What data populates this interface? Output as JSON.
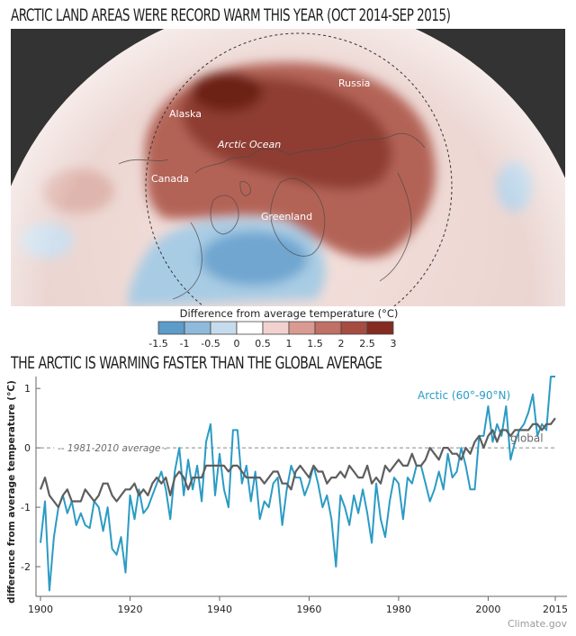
{
  "map": {
    "title": "Arctic land areas were record warm this year (Oct 2014-Sep 2015)",
    "labels": {
      "alaska": "Alaska",
      "russia": "Russia",
      "arctic_ocean": "Arctic Ocean",
      "canada": "Canada",
      "greenland": "Greenland"
    },
    "legend": {
      "title": "Difference from average temperature (°C)",
      "ticks": [
        "-1.5",
        "-1",
        "-0.5",
        "0",
        "0.5",
        "1",
        "1.5",
        "2",
        "2.5",
        "3"
      ],
      "colors": [
        "#5d9cc9",
        "#8fbadc",
        "#c6dcec",
        "#ffffff",
        "#f1d2ce",
        "#d99a92",
        "#c07064",
        "#a64c41",
        "#852c22"
      ]
    }
  },
  "chart_data": {
    "type": "line",
    "title": "The Arctic is warming faster than the global average",
    "xlabel": "",
    "ylabel": "difference from average temperature (°C)",
    "xlim": [
      1900,
      2015
    ],
    "ylim": [
      -2.5,
      1.2
    ],
    "yticks": [
      "1",
      "0",
      "-1",
      "-2"
    ],
    "ytick_values": [
      1,
      0,
      -1,
      -2
    ],
    "xticks": [
      "1900",
      "1920",
      "1940",
      "1960",
      "1980",
      "2000",
      "2015"
    ],
    "xtick_values": [
      1900,
      1920,
      1940,
      1960,
      1980,
      2000,
      2015
    ],
    "reference_line": {
      "value": 0,
      "label": "1981-2010 average"
    },
    "credit": "Climate.gov",
    "series": [
      {
        "name": "Arctic (60°-90°N)",
        "color": "#2b9bc4",
        "x_start": 1900,
        "values": [
          -1.6,
          -0.9,
          -2.4,
          -1.5,
          -1.0,
          -0.8,
          -1.1,
          -0.9,
          -1.3,
          -1.1,
          -1.3,
          -1.35,
          -0.9,
          -1.0,
          -1.4,
          -1.0,
          -1.7,
          -1.8,
          -1.5,
          -2.1,
          -0.8,
          -1.2,
          -0.7,
          -1.1,
          -1.0,
          -0.8,
          -0.6,
          -0.4,
          -0.7,
          -1.2,
          -0.4,
          0.0,
          -0.8,
          -0.2,
          -0.7,
          -0.3,
          -0.9,
          0.1,
          0.4,
          -0.8,
          -0.1,
          -0.7,
          -1.0,
          0.3,
          0.3,
          -0.6,
          -0.3,
          -0.9,
          -0.4,
          -1.2,
          -0.9,
          -1.0,
          -0.6,
          -0.5,
          -1.3,
          -0.7,
          -0.3,
          -0.5,
          -0.5,
          -0.8,
          -0.6,
          -0.3,
          -0.6,
          -1.0,
          -0.8,
          -1.2,
          -2.0,
          -0.8,
          -1.0,
          -1.3,
          -0.8,
          -1.1,
          -0.7,
          -1.1,
          -1.6,
          -0.6,
          -1.2,
          -1.5,
          -0.9,
          -0.5,
          -0.6,
          -1.2,
          -0.5,
          -0.6,
          -0.3,
          -0.3,
          -0.6,
          -0.9,
          -0.7,
          -0.4,
          -0.7,
          -0.1,
          -0.5,
          -0.4,
          0.0,
          -0.3,
          -0.7,
          -0.7,
          0.2,
          0.2,
          0.7,
          0.1,
          0.4,
          0.2,
          0.7,
          -0.2,
          0.1,
          0.3,
          0.4,
          0.6,
          0.9,
          0.2,
          0.4,
          0.3,
          1.2,
          1.2
        ]
      },
      {
        "name": "global",
        "color": "#5e5e5e",
        "x_start": 1900,
        "values": [
          -0.7,
          -0.5,
          -0.8,
          -0.9,
          -1.0,
          -0.8,
          -0.7,
          -0.9,
          -0.9,
          -0.9,
          -0.7,
          -0.8,
          -0.9,
          -0.8,
          -0.6,
          -0.6,
          -0.8,
          -0.9,
          -0.8,
          -0.7,
          -0.7,
          -0.6,
          -0.8,
          -0.7,
          -0.8,
          -0.6,
          -0.5,
          -0.6,
          -0.5,
          -0.8,
          -0.5,
          -0.4,
          -0.5,
          -0.7,
          -0.5,
          -0.5,
          -0.5,
          -0.3,
          -0.3,
          -0.3,
          -0.3,
          -0.3,
          -0.4,
          -0.3,
          -0.3,
          -0.4,
          -0.5,
          -0.5,
          -0.5,
          -0.5,
          -0.6,
          -0.5,
          -0.4,
          -0.4,
          -0.6,
          -0.6,
          -0.7,
          -0.4,
          -0.3,
          -0.4,
          -0.5,
          -0.3,
          -0.4,
          -0.4,
          -0.6,
          -0.5,
          -0.5,
          -0.4,
          -0.5,
          -0.3,
          -0.4,
          -0.5,
          -0.5,
          -0.3,
          -0.6,
          -0.5,
          -0.6,
          -0.3,
          -0.4,
          -0.3,
          -0.2,
          -0.3,
          -0.3,
          -0.1,
          -0.3,
          -0.3,
          -0.2,
          0.0,
          -0.1,
          -0.2,
          0.0,
          0.0,
          -0.1,
          -0.1,
          -0.2,
          0.0,
          -0.1,
          0.1,
          0.2,
          0.0,
          0.2,
          0.3,
          0.1,
          0.3,
          0.3,
          0.2,
          0.3,
          0.3,
          0.3,
          0.3,
          0.4,
          0.4,
          0.3,
          0.4,
          0.4,
          0.5
        ]
      }
    ]
  }
}
